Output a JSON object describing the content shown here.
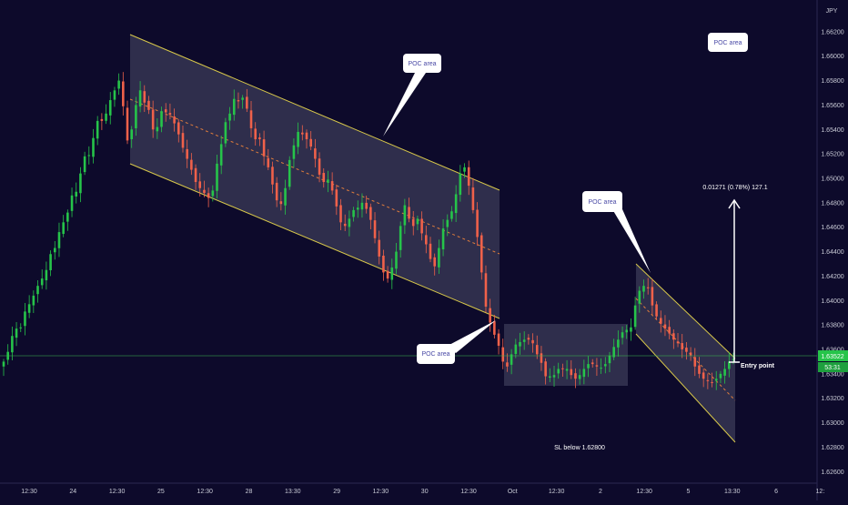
{
  "chart_data": {
    "type": "candlestick",
    "currency_label": "JPY",
    "ylim": [
      1.6255,
      1.664
    ],
    "y_ticks": [
      {
        "value": 1.662,
        "label": "1.66200"
      },
      {
        "value": 1.66,
        "label": "1.66000"
      },
      {
        "value": 1.658,
        "label": "1.65800"
      },
      {
        "value": 1.656,
        "label": "1.65600"
      },
      {
        "value": 1.654,
        "label": "1.65400"
      },
      {
        "value": 1.652,
        "label": "1.65200"
      },
      {
        "value": 1.65,
        "label": "1.65000"
      },
      {
        "value": 1.648,
        "label": "1.64800"
      },
      {
        "value": 1.646,
        "label": "1.64600"
      },
      {
        "value": 1.644,
        "label": "1.64400"
      },
      {
        "value": 1.642,
        "label": "1.64200"
      },
      {
        "value": 1.64,
        "label": "1.64000"
      },
      {
        "value": 1.638,
        "label": "1.63800"
      },
      {
        "value": 1.636,
        "label": "1.63600"
      },
      {
        "value": 1.634,
        "label": "1.63400"
      },
      {
        "value": 1.632,
        "label": "1.63200"
      },
      {
        "value": 1.63,
        "label": "1.63000"
      },
      {
        "value": 1.628,
        "label": "1.62800"
      },
      {
        "value": 1.626,
        "label": "1.62600"
      }
    ],
    "x_ticks": [
      "12:30",
      "24",
      "12:30",
      "25",
      "12:30",
      "28",
      "13:30",
      "29",
      "12:30",
      "30",
      "12:30",
      "Oct",
      "12:30",
      "2",
      "12:30",
      "5",
      "13:30",
      "6",
      "12:"
    ],
    "current_price": {
      "value": 1.6352,
      "label": "1.63522",
      "countdown": "53:31",
      "color": "#26c44a"
    },
    "annotations": [
      {
        "text": "POC area",
        "name": "poc-label-top"
      },
      {
        "text": "POC area",
        "name": "poc-label-right-top"
      },
      {
        "text": "POC area",
        "name": "poc-label-middle"
      },
      {
        "text": "POC area",
        "name": "poc-label-bottom"
      }
    ],
    "measure_label": "0.01271 (0.78%) 127.1",
    "entry_label": "Entry point",
    "sl_label": "SL below 1.62800",
    "colors": {
      "up": "#26c44a",
      "down": "#f0614a",
      "background": "#0d0a2b",
      "channel_line": "#d8c84a",
      "channel_fill": "#3a3856",
      "price_line": "#3cb84f"
    },
    "candle_series": [
      1.635,
      1.6358,
      1.6371,
      1.6377,
      1.6378,
      1.6391,
      1.6397,
      1.6404,
      1.6412,
      1.6418,
      1.6425,
      1.6438,
      1.6443,
      1.6456,
      1.6464,
      1.6472,
      1.6486,
      1.6489,
      1.6504,
      1.6518,
      1.6519,
      1.6533,
      1.6547,
      1.6547,
      1.6553,
      1.6564,
      1.6572,
      1.658,
      1.6559,
      1.6531,
      1.654,
      1.656,
      1.6572,
      1.6562,
      1.6556,
      1.654,
      1.6542,
      1.6555,
      1.6554,
      1.6552,
      1.6545,
      1.6536,
      1.6525,
      1.6516,
      1.6507,
      1.6497,
      1.6492,
      1.6488,
      1.6484,
      1.649,
      1.6512,
      1.6528,
      1.6546,
      1.6553,
      1.6565,
      1.6563,
      1.6566,
      1.6557,
      1.6541,
      1.6532,
      1.6532,
      1.6518,
      1.6509,
      1.6495,
      1.6482,
      1.6479,
      1.6492,
      1.6515,
      1.6527,
      1.6538,
      1.6536,
      1.6532,
      1.6526,
      1.6516,
      1.6503,
      1.6497,
      1.6499,
      1.649,
      1.6477,
      1.6464,
      1.6461,
      1.6467,
      1.6474,
      1.6476,
      1.648,
      1.6475,
      1.6466,
      1.6451,
      1.6436,
      1.6423,
      1.6418,
      1.6427,
      1.644,
      1.6461,
      1.6478,
      1.6467,
      1.6461,
      1.6467,
      1.6455,
      1.6446,
      1.6434,
      1.6428,
      1.6443,
      1.6459,
      1.6466,
      1.6473,
      1.6487,
      1.6504,
      1.6509,
      1.6494,
      1.6474,
      1.6452,
      1.6423,
      1.6395,
      1.6382,
      1.6372,
      1.6363,
      1.635,
      1.6346,
      1.6356,
      1.6364,
      1.6366,
      1.6368,
      1.6368,
      1.6365,
      1.6356,
      1.6349,
      1.6338,
      1.6338,
      1.6339,
      1.6344,
      1.6344,
      1.6344,
      1.6339,
      1.6336,
      1.6339,
      1.6344,
      1.6348,
      1.6348,
      1.6346,
      1.6345,
      1.6348,
      1.6355,
      1.6362,
      1.6368,
      1.6374,
      1.6376,
      1.6378,
      1.6396,
      1.6408,
      1.6412,
      1.641,
      1.6396,
      1.6387,
      1.6381,
      1.6377,
      1.6373,
      1.6368,
      1.6365,
      1.636,
      1.6358,
      1.6355,
      1.6346,
      1.634,
      1.6336,
      1.6334,
      1.6333,
      1.6336,
      1.634,
      1.6344,
      1.635,
      1.6352
    ]
  }
}
